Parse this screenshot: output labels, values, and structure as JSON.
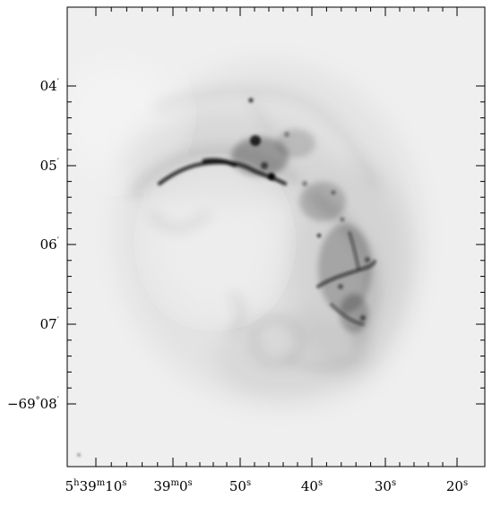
{
  "image": {
    "subject": "grayscale astronomical sky map",
    "colors": {
      "background": "#ffffff",
      "sky": "#eeeeee",
      "nebula": "#111111",
      "frame": "#000000"
    }
  },
  "axes": {
    "ra_ticks": [
      {
        "h": "5",
        "hs": "h",
        "m": "39",
        "ms": "m",
        "s": "10",
        "ss": "s"
      },
      {
        "m": "39",
        "ms": "m",
        "s": "0",
        "ss": "s"
      },
      {
        "s": "50",
        "ss": "s"
      },
      {
        "s": "40",
        "ss": "s"
      },
      {
        "s": "30",
        "ss": "s"
      },
      {
        "s": "20",
        "ss": "s"
      }
    ],
    "dec_ticks": [
      {
        "text": "04",
        "unit": "′"
      },
      {
        "text": "05",
        "unit": "′"
      },
      {
        "text": "06",
        "unit": "′"
      },
      {
        "text": "07",
        "unit": "′"
      },
      {
        "deg": "−69",
        "deg_unit": "°",
        "text": "08",
        "unit": "′"
      }
    ]
  }
}
